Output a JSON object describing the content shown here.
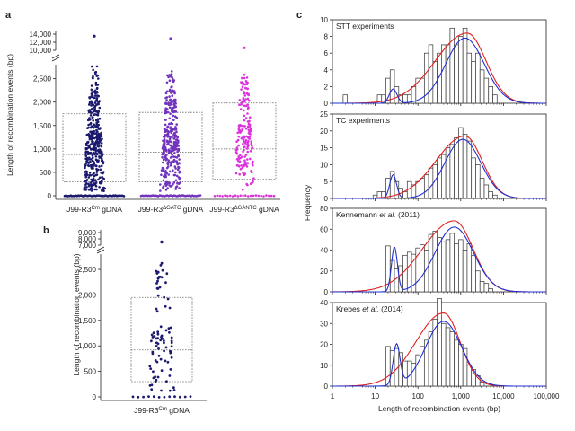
{
  "panel_labels": {
    "a": "a",
    "b": "b",
    "c": "c"
  },
  "colors": {
    "dna_cm": "#1c1a6e",
    "dna_gatc": "#7234bd",
    "dna_gantc": "#dd33dd",
    "dna_b": "#1c1a6e",
    "hist_bar": "#333333",
    "fit_blue": "#2030d0",
    "fit_red": "#e02020"
  },
  "chart_data": [
    {
      "id": "a",
      "type": "scatter",
      "ylabel": "Length of recombination events (bp)",
      "yticks_lower": [
        "0",
        "500",
        "1,000",
        "1,500",
        "2,000",
        "2,500"
      ],
      "yticks_upper": [
        "10,000",
        "12,000",
        "14,000"
      ],
      "ylim_lower": [
        0,
        2800
      ],
      "ylim_upper": [
        10000,
        14000
      ],
      "categories": [
        {
          "label_main": "J99-R3",
          "label_sup": "Cm",
          "label_suffix": " gDNA",
          "color_key": "dna_cm",
          "n": 480,
          "q1": 300,
          "median": 880,
          "q3": 1750,
          "max_main": 2800,
          "outliers": [
            13500
          ]
        },
        {
          "label_main": "J99-R3",
          "label_sup": "ΔGATC",
          "label_suffix": " gDNA",
          "color_key": "dna_gatc",
          "n": 380,
          "q1": 300,
          "median": 930,
          "q3": 1780,
          "max_main": 2700,
          "outliers": [
            12900
          ]
        },
        {
          "label_main": "J99-R3",
          "label_sup": "ΔGANTC",
          "label_suffix": " gDNA",
          "color_key": "dna_gantc",
          "n": 200,
          "q1": 350,
          "median": 1000,
          "q3": 1980,
          "max_main": 2600,
          "outliers": [
            10600
          ]
        }
      ]
    },
    {
      "id": "b",
      "type": "scatter",
      "ylabel": "Length of recombination events (bp)",
      "yticks_lower": [
        "0",
        "500",
        "1,000",
        "1,500",
        "2,000",
        "2,500"
      ],
      "yticks_upper": [
        "7,000",
        "8,000",
        "9,000"
      ],
      "ylim_lower": [
        0,
        2800
      ],
      "ylim_upper": [
        7000,
        9000
      ],
      "categories": [
        {
          "label_main": "J99-R3",
          "label_sup": "Cm",
          "label_suffix": " gDNA",
          "color_key": "dna_b",
          "n": 100,
          "q1": 300,
          "median": 920,
          "q3": 1950,
          "max_main": 2800,
          "outliers": [
            7500
          ]
        }
      ]
    },
    {
      "id": "c",
      "type": "bar",
      "xlabel": "Length of recombination events (bp)",
      "ylabel": "Frequency",
      "xscale": "log",
      "xlim": [
        1,
        100000
      ],
      "xticks": [
        "1",
        "10",
        "100",
        "1,000",
        "10,000",
        "100,000"
      ],
      "subplots": [
        {
          "title": "STT experiments",
          "ylim": [
            0,
            10
          ],
          "yticks": [
            "0",
            "2",
            "4",
            "6",
            "8",
            "10"
          ],
          "bins_log10": [
            0.3,
            0.4,
            0.5,
            0.6,
            0.7,
            0.8,
            0.9,
            1.0,
            1.1,
            1.2,
            1.3,
            1.4,
            1.5,
            1.6,
            1.7,
            1.8,
            1.9,
            2.0,
            2.1,
            2.2,
            2.3,
            2.4,
            2.5,
            2.6,
            2.7,
            2.8,
            2.9,
            3.0,
            3.1,
            3.2,
            3.3,
            3.4,
            3.5,
            3.6,
            3.7,
            3.8
          ],
          "counts": [
            1,
            0,
            0,
            0,
            0,
            0,
            0,
            0,
            1,
            1,
            3,
            4,
            2,
            1,
            1,
            1,
            2,
            3,
            3,
            6,
            7,
            5,
            6,
            7,
            7,
            9,
            7,
            8,
            9,
            6,
            5,
            6,
            4,
            3,
            2,
            1
          ],
          "fit_blue": {
            "w1": 0.12,
            "m1": 1.42,
            "s1": 0.09,
            "w2": 0.88,
            "m2": 3.1,
            "s2": 0.45,
            "peak": 7.8
          },
          "fit_red": {
            "m": 3.15,
            "s": 0.55,
            "peak": 8.4
          }
        },
        {
          "title": "TC experiments",
          "ylim": [
            0,
            25
          ],
          "yticks": [
            "0",
            "5",
            "10",
            "15",
            "20",
            "25"
          ],
          "bins_log10": [
            1.0,
            1.1,
            1.2,
            1.3,
            1.4,
            1.5,
            1.6,
            1.7,
            1.8,
            1.9,
            2.0,
            2.1,
            2.2,
            2.3,
            2.4,
            2.5,
            2.6,
            2.7,
            2.8,
            2.9,
            3.0,
            3.1,
            3.2,
            3.3,
            3.4,
            3.5,
            3.6,
            3.7,
            3.8
          ],
          "counts": [
            1,
            2,
            2,
            6,
            8,
            5,
            3,
            2,
            5,
            4,
            5,
            6,
            7,
            9,
            10,
            12,
            13,
            15,
            16,
            18,
            21,
            19,
            17,
            12,
            10,
            6,
            4,
            2,
            1
          ],
          "fit_blue": {
            "w1": 0.2,
            "m1": 1.42,
            "s1": 0.08,
            "w2": 0.8,
            "m2": 3.05,
            "s2": 0.42,
            "peak": 17.5
          },
          "fit_red": {
            "m": 3.1,
            "s": 0.5,
            "peak": 18.5
          }
        },
        {
          "title": "Kennemann ",
          "title_italic": "et al.",
          "title_suffix": " (2011)",
          "ylim": [
            0,
            80
          ],
          "yticks": [
            "0",
            "20",
            "40",
            "60",
            "80"
          ],
          "bins_log10": [
            1.3,
            1.4,
            1.5,
            1.6,
            1.7,
            1.8,
            1.9,
            2.0,
            2.1,
            2.2,
            2.3,
            2.4,
            2.5,
            2.6,
            2.7,
            2.8,
            2.9,
            3.0,
            3.1,
            3.2,
            3.3,
            3.4,
            3.5,
            3.6,
            3.7
          ],
          "counts": [
            44,
            30,
            22,
            25,
            35,
            38,
            36,
            42,
            45,
            40,
            55,
            58,
            52,
            48,
            50,
            56,
            46,
            50,
            40,
            46,
            35,
            20,
            10,
            8,
            3
          ],
          "fit_blue": {
            "w1": 0.3,
            "m1": 1.45,
            "s1": 0.07,
            "w2": 0.7,
            "m2": 2.85,
            "s2": 0.45,
            "peak": 62
          },
          "fit_red": {
            "m": 2.85,
            "s": 0.55,
            "peak": 68
          }
        },
        {
          "title": "Krebes ",
          "title_italic": "et al.",
          "title_suffix": " (2014)",
          "ylim": [
            0,
            40
          ],
          "yticks": [
            "0",
            "10",
            "20",
            "30",
            "40"
          ],
          "bins_log10": [
            1.3,
            1.4,
            1.5,
            1.6,
            1.7,
            1.8,
            1.9,
            2.0,
            2.1,
            2.2,
            2.3,
            2.4,
            2.5,
            2.6,
            2.7,
            2.8,
            2.9,
            3.0,
            3.1,
            3.2,
            3.3,
            3.4,
            3.5
          ],
          "counts": [
            19,
            17,
            18,
            16,
            12,
            12,
            11,
            15,
            19,
            22,
            26,
            32,
            42,
            30,
            28,
            26,
            22,
            20,
            18,
            10,
            8,
            5,
            2
          ],
          "fit_blue": {
            "w1": 0.28,
            "m1": 1.5,
            "s1": 0.08,
            "w2": 0.72,
            "m2": 2.6,
            "s2": 0.42,
            "peak": 31
          },
          "fit_red": {
            "m": 2.6,
            "s": 0.48,
            "peak": 35
          }
        }
      ]
    }
  ]
}
